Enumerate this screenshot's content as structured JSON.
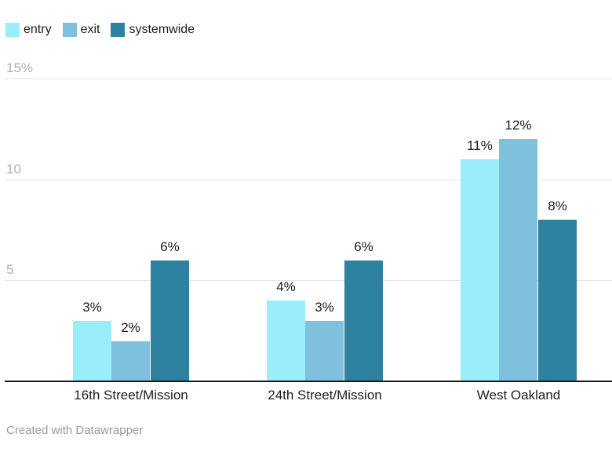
{
  "chart_data": {
    "type": "bar",
    "title": "",
    "categories": [
      "16th Street/Mission",
      "24th Street/Mission",
      "West Oakland"
    ],
    "series": [
      {
        "name": "entry",
        "color": "#9aeefc",
        "values": [
          3,
          4,
          11
        ],
        "labels": [
          "3%",
          "4%",
          "11%"
        ]
      },
      {
        "name": "exit",
        "color": "#7fc1dd",
        "values": [
          2,
          3,
          12
        ],
        "labels": [
          "2%",
          "3%",
          "12%"
        ]
      },
      {
        "name": "systemwide",
        "color": "#2f81a0",
        "values": [
          6,
          6,
          8
        ],
        "labels": [
          "6%",
          "6%",
          "8%"
        ]
      }
    ],
    "ylabel": "",
    "xlabel": "",
    "ylim": [
      0,
      15
    ],
    "yticks": [
      {
        "value": 5,
        "label": "5"
      },
      {
        "value": 10,
        "label": "10"
      },
      {
        "value": 15,
        "label": "15%"
      }
    ],
    "grid": true,
    "legend_position": "top-left"
  },
  "footer": {
    "credit": "Created with Datawrapper"
  },
  "colors": {
    "background": "#ffffff",
    "grid": "#e4e4e4",
    "baseline": "#1a1a1a",
    "tick_label": "#b0b0b0",
    "value_label": "#1a1a1a",
    "category_label": "#1d1d1d",
    "credit": "#9a9a9a"
  }
}
